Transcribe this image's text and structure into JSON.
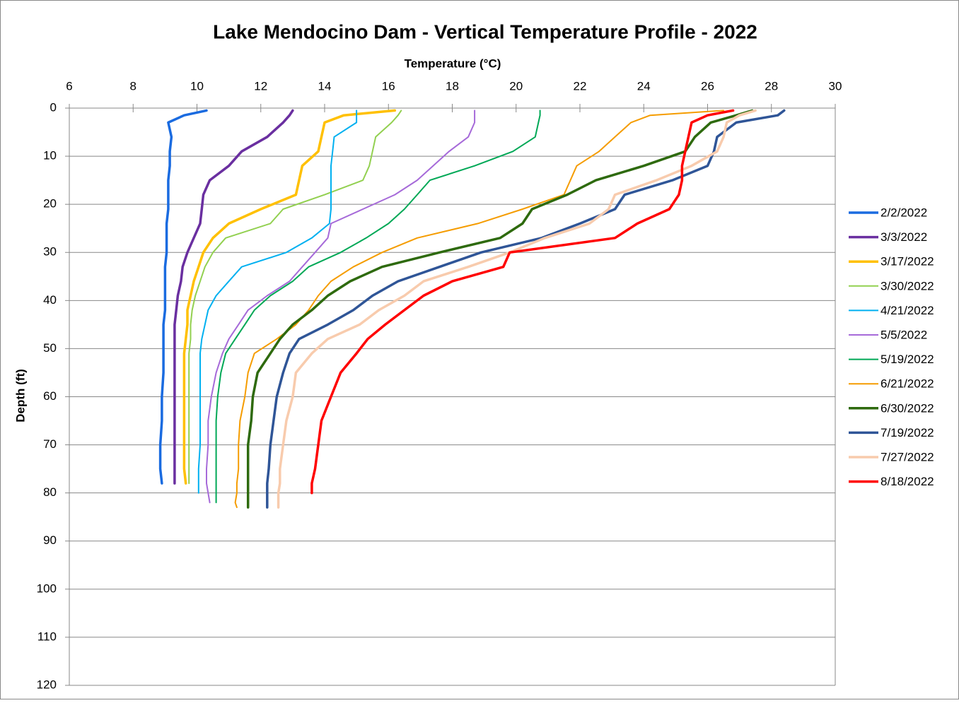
{
  "chart_data": {
    "type": "line",
    "title": "Lake Mendocino Dam - Vertical Temperature Profile - 2022",
    "x_label": "Temperature (°C)",
    "y_label": "Depth (ft)",
    "y": [
      0.5,
      1.5,
      3,
      6,
      9,
      12,
      15,
      18,
      21,
      24,
      27,
      30,
      33,
      36,
      39,
      42,
      45,
      48,
      51,
      55,
      60,
      65,
      70,
      75,
      78,
      80,
      82,
      83
    ],
    "xlim": [
      6,
      30
    ],
    "xticks": [
      6,
      8,
      10,
      12,
      14,
      16,
      18,
      20,
      22,
      24,
      26,
      28,
      30
    ],
    "ylim": [
      0,
      120
    ],
    "yticks": [
      0,
      10,
      20,
      30,
      40,
      50,
      60,
      70,
      80,
      90,
      100,
      110,
      120
    ],
    "y_inverted": true,
    "x_axis_position": "top",
    "grid": true,
    "legend": "right",
    "series": [
      {
        "name": "2/2/2022",
        "color": "#1a6be0",
        "width": 3.5,
        "values": [
          10.3,
          9.6,
          9.1,
          9.2,
          9.15,
          9.15,
          9.1,
          9.1,
          9.1,
          9.05,
          9.05,
          9.05,
          9.0,
          9.0,
          9.0,
          9.0,
          8.95,
          8.95,
          8.95,
          8.95,
          8.9,
          8.9,
          8.85,
          8.85,
          8.9,
          null,
          null,
          null
        ]
      },
      {
        "name": "3/3/2022",
        "color": "#6a2fa0",
        "width": 3.5,
        "values": [
          13.0,
          12.9,
          12.7,
          12.2,
          11.4,
          11.0,
          10.4,
          10.2,
          10.15,
          10.1,
          9.9,
          9.7,
          9.55,
          9.5,
          9.4,
          9.35,
          9.3,
          9.3,
          9.3,
          9.3,
          9.3,
          9.3,
          9.3,
          9.3,
          9.3,
          null,
          null,
          null
        ]
      },
      {
        "name": "3/17/2022",
        "color": "#ffc000",
        "width": 3.5,
        "values": [
          16.2,
          14.6,
          14.0,
          13.9,
          13.8,
          13.3,
          13.2,
          13.1,
          12.0,
          11.0,
          10.5,
          10.2,
          10.05,
          9.9,
          9.8,
          9.7,
          9.7,
          9.65,
          9.6,
          9.6,
          9.6,
          9.6,
          9.6,
          9.6,
          9.65,
          null,
          null,
          null
        ]
      },
      {
        "name": "3/30/2022",
        "color": "#92d050",
        "width": 2,
        "values": [
          16.4,
          16.3,
          16.1,
          15.6,
          15.5,
          15.4,
          15.2,
          14.0,
          12.7,
          12.3,
          10.9,
          10.5,
          10.25,
          10.1,
          9.95,
          9.85,
          9.8,
          9.8,
          9.75,
          9.75,
          9.75,
          9.75,
          9.75,
          9.75,
          9.75,
          null,
          null,
          null
        ]
      },
      {
        "name": "4/21/2022",
        "color": "#00b0f0",
        "width": 2,
        "values": [
          15.0,
          15.0,
          15.0,
          14.3,
          14.25,
          14.2,
          14.2,
          14.2,
          14.2,
          14.15,
          13.6,
          12.8,
          11.4,
          11.0,
          10.6,
          10.35,
          10.25,
          10.15,
          10.1,
          10.1,
          10.1,
          10.1,
          10.1,
          10.05,
          10.05,
          10.05,
          null,
          null
        ]
      },
      {
        "name": "5/5/2022",
        "color": "#a66ad9",
        "width": 2,
        "values": [
          18.7,
          18.7,
          18.7,
          18.5,
          17.9,
          17.4,
          16.9,
          16.2,
          15.2,
          14.2,
          14.1,
          13.7,
          13.3,
          12.9,
          12.2,
          11.6,
          11.3,
          11.0,
          10.8,
          10.6,
          10.45,
          10.35,
          10.35,
          10.3,
          10.3,
          10.35,
          10.4,
          null
        ]
      },
      {
        "name": "5/19/2022",
        "color": "#00a856",
        "width": 2,
        "values": [
          20.75,
          20.75,
          20.7,
          20.6,
          19.9,
          18.7,
          17.3,
          16.9,
          16.5,
          16.0,
          15.3,
          14.5,
          13.5,
          13.0,
          12.3,
          11.8,
          11.5,
          11.2,
          10.9,
          10.75,
          10.65,
          10.6,
          10.6,
          10.6,
          10.6,
          10.6,
          10.6,
          null
        ]
      },
      {
        "name": "6/21/2022",
        "color": "#f59c00",
        "width": 2,
        "values": [
          26.5,
          24.2,
          23.6,
          23.1,
          22.6,
          21.9,
          21.7,
          21.5,
          20.2,
          18.8,
          16.9,
          15.8,
          14.9,
          14.2,
          13.8,
          13.5,
          13.1,
          12.5,
          11.8,
          11.6,
          11.5,
          11.35,
          11.3,
          11.3,
          11.25,
          11.25,
          11.2,
          11.25
        ]
      },
      {
        "name": "6/30/2022",
        "color": "#2e6a0e",
        "width": 3.5,
        "values": [
          27.4,
          26.9,
          26.1,
          25.6,
          25.3,
          24.0,
          22.5,
          21.6,
          20.5,
          20.2,
          19.5,
          17.6,
          15.8,
          14.8,
          14.1,
          13.6,
          13.0,
          12.6,
          12.3,
          11.9,
          11.75,
          11.7,
          11.6,
          11.6,
          11.6,
          11.6,
          11.6,
          11.6
        ]
      },
      {
        "name": "7/19/2022",
        "color": "#2f5597",
        "width": 3.5,
        "values": [
          28.4,
          28.2,
          26.9,
          26.3,
          26.2,
          26.0,
          24.9,
          23.4,
          23.1,
          22.0,
          20.8,
          18.9,
          17.6,
          16.3,
          15.5,
          14.9,
          14.1,
          13.2,
          12.9,
          12.7,
          12.5,
          12.4,
          12.3,
          12.25,
          12.2,
          12.2,
          12.2,
          12.2
        ]
      },
      {
        "name": "7/27/2022",
        "color": "#f8cbad",
        "width": 3.5,
        "values": [
          27.5,
          27.0,
          26.6,
          26.5,
          26.3,
          25.5,
          24.4,
          23.1,
          22.9,
          22.3,
          20.9,
          19.8,
          18.5,
          17.1,
          16.5,
          15.7,
          15.1,
          14.1,
          13.6,
          13.1,
          13.0,
          12.8,
          12.7,
          12.6,
          12.6,
          12.55,
          12.55,
          12.55
        ]
      },
      {
        "name": "8/18/2022",
        "color": "#ff0000",
        "width": 3.5,
        "values": [
          26.8,
          26.0,
          25.5,
          25.4,
          25.3,
          25.2,
          25.2,
          25.1,
          24.8,
          23.8,
          23.1,
          19.8,
          19.6,
          18.0,
          17.1,
          16.5,
          15.9,
          15.35,
          15.0,
          14.5,
          14.2,
          13.9,
          13.8,
          13.7,
          13.6,
          13.6,
          null,
          null
        ]
      }
    ]
  }
}
